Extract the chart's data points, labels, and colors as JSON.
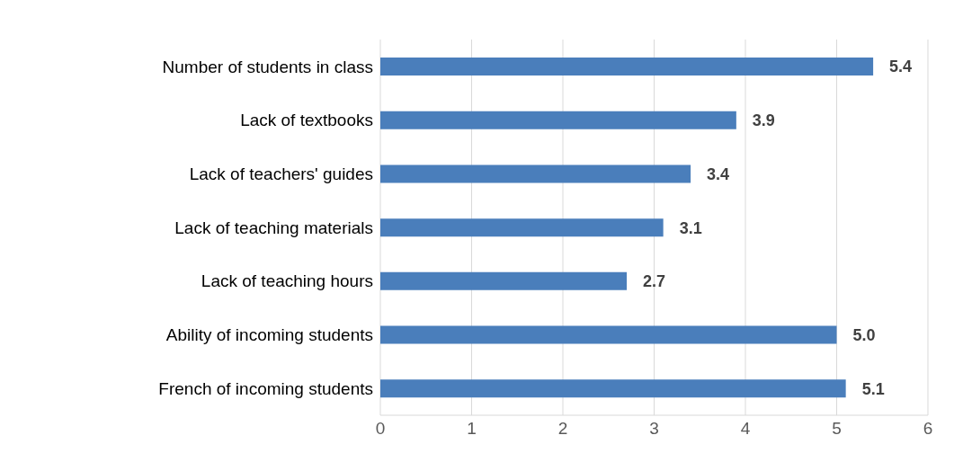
{
  "chart_data": {
    "type": "bar",
    "orientation": "horizontal",
    "categories": [
      "Number of students in class",
      "Lack of textbooks",
      "Lack of teachers' guides",
      "Lack of teaching materials",
      "Lack of teaching hours",
      "Ability of incoming students",
      "French of incoming students"
    ],
    "values": [
      5.4,
      3.9,
      3.4,
      3.1,
      2.7,
      5.0,
      5.1
    ],
    "value_labels": [
      "5.4",
      "3.9",
      "3.4",
      "3.1",
      "2.7",
      "5.0",
      "5.1"
    ],
    "color": "#4a7ebb",
    "xlim": [
      0,
      6
    ],
    "xticks": [
      0,
      1,
      2,
      3,
      4,
      5,
      6
    ],
    "grid": "x",
    "legend": false
  }
}
